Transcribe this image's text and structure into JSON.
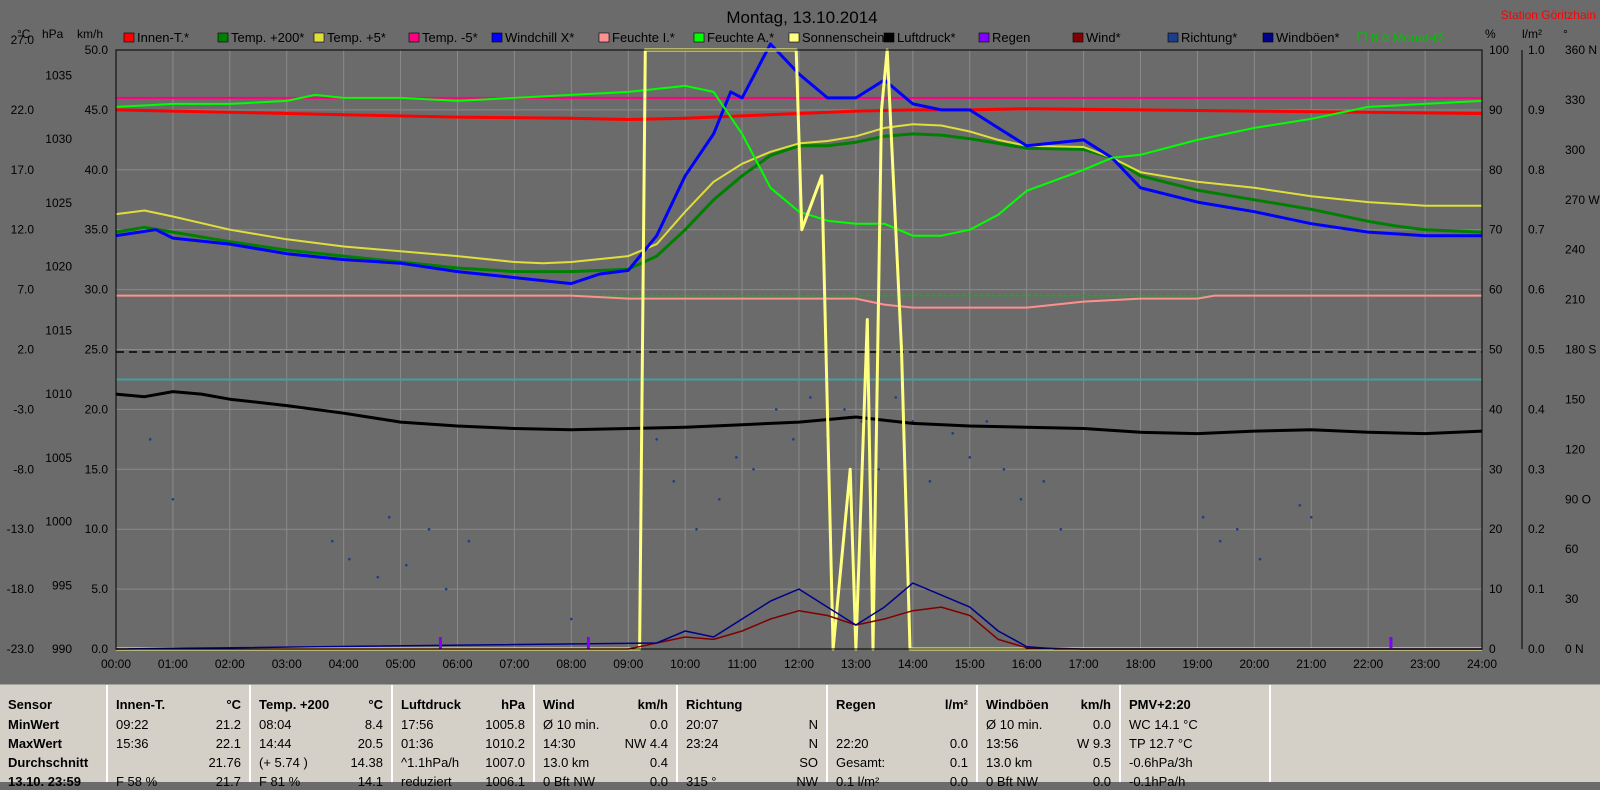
{
  "title": "Montag, 13.10.2014",
  "station": "Station Göritzhain",
  "axis_units_left": [
    "°C",
    "hPa",
    "km/h"
  ],
  "axis_units_right": [
    "%",
    "l/m²",
    "°"
  ],
  "colors": {
    "background": "#6b6b6b",
    "grid": "#8a8a8a",
    "innen_t": "#ff0000",
    "temp_200": "#008000",
    "temp_5": "#dede3c",
    "temp_m5": "#ff0080",
    "windchill": "#0000ff",
    "feuchte_i": "#ff9090",
    "feuchte_a": "#00ff00",
    "sonnenschein": "#ffff80",
    "luftdruck": "#000000",
    "regen": "#8000ff",
    "wind": "#800000",
    "richtung": "#1c3c8c",
    "windboeen": "#00008b",
    "monat": "#00c000",
    "station": "#ff0000",
    "dashed": "#000000",
    "teal": "#40a0a0"
  },
  "chart_data": {
    "type": "line",
    "title": "Montag, 13.10.2014",
    "x_ticks": [
      "00:00",
      "01:00",
      "02:00",
      "03:00",
      "04:00",
      "05:00",
      "06:00",
      "07:00",
      "08:00",
      "09:00",
      "10:00",
      "11:00",
      "12:00",
      "13:00",
      "14:00",
      "15:00",
      "16:00",
      "17:00",
      "18:00",
      "19:00",
      "20:00",
      "21:00",
      "22:00",
      "23:00",
      "24:00"
    ],
    "xlim": [
      0,
      24
    ],
    "y_axes": {
      "celsius": {
        "unit": "°C",
        "ticks": [
          "27.0",
          "22.0",
          "17.0",
          "12.0",
          "7.0",
          "2.0",
          "-3.0",
          "-8.0",
          "-13.0",
          "-18.0",
          "-23.0"
        ],
        "ylim": [
          -23,
          27
        ]
      },
      "hpa": {
        "unit": "hPa",
        "ticks": [
          "1035",
          "1030",
          "1025",
          "1020",
          "1015",
          "1010",
          "1005",
          "1000",
          "995",
          "990"
        ],
        "ylim": [
          990,
          1037
        ]
      },
      "kmh": {
        "unit": "km/h",
        "ticks": [
          "50.0",
          "45.0",
          "40.0",
          "35.0",
          "30.0",
          "25.0",
          "20.0",
          "15.0",
          "10.0",
          "5.0",
          "0.0"
        ],
        "ylim": [
          0,
          50
        ]
      },
      "percent": {
        "unit": "%",
        "ticks": [
          "100",
          "90",
          "80",
          "70",
          "60",
          "50",
          "40",
          "30",
          "20",
          "10",
          "0"
        ],
        "ylim": [
          0,
          100
        ]
      },
      "rain": {
        "unit": "l/m²",
        "ticks": [
          "1.0",
          "0.9",
          "0.8",
          "0.7",
          "0.6",
          "0.5",
          "0.4",
          "0.3",
          "0.2",
          "0.1",
          "0.0"
        ],
        "ylim": [
          0,
          1
        ]
      },
      "direction": {
        "unit": "°",
        "ticks": [
          "360 N",
          "330",
          "300",
          "270 W",
          "240",
          "210",
          "180 S",
          "150",
          "120",
          "90 O",
          "60",
          "30",
          "0 N"
        ],
        "ylim": [
          0,
          360
        ]
      }
    },
    "legend": [
      {
        "name": "Innen-T.*",
        "color": "#ff0000"
      },
      {
        "name": "Temp. +200*",
        "color": "#008000"
      },
      {
        "name": "Temp. +5*",
        "color": "#dede3c"
      },
      {
        "name": "Temp. -5*",
        "color": "#ff0080"
      },
      {
        "name": "Windchill X*",
        "color": "#0000ff"
      },
      {
        "name": "Feuchte I.*",
        "color": "#ff9090"
      },
      {
        "name": "Feuchte A.*",
        "color": "#00ff00"
      },
      {
        "name": "Sonnenschein",
        "color": "#ffff80"
      },
      {
        "name": "Luftdruck*",
        "color": "#000000"
      },
      {
        "name": "Regen",
        "color": "#8000ff"
      },
      {
        "name": "Wind*",
        "color": "#800000"
      },
      {
        "name": "Richtung*",
        "color": "#1c3c8c"
      },
      {
        "name": "Windböen*",
        "color": "#00008b"
      },
      {
        "name": "8.6 Monat-Ø",
        "color": "#00c000"
      }
    ],
    "series": [
      {
        "name": "Innen-T.*",
        "axis": "celsius",
        "x": [
          0,
          1,
          2,
          4,
          6,
          8,
          9,
          10,
          11,
          12,
          13,
          14,
          15,
          16,
          18,
          20,
          22,
          24
        ],
        "y": [
          22.0,
          21.9,
          21.8,
          21.6,
          21.4,
          21.3,
          21.2,
          21.3,
          21.5,
          21.7,
          21.9,
          22.0,
          22.0,
          22.1,
          22.0,
          21.9,
          21.8,
          21.7
        ]
      },
      {
        "name": "Temp. -5*",
        "axis": "celsius",
        "x": [
          0,
          24
        ],
        "y": [
          23.0,
          23.0
        ]
      },
      {
        "name": "Temp. +200*",
        "axis": "celsius",
        "x": [
          0,
          0.5,
          1,
          2,
          3,
          4,
          5,
          6,
          7,
          8,
          9,
          9.5,
          10,
          10.5,
          11,
          11.5,
          12,
          12.5,
          13,
          13.5,
          14,
          14.5,
          15,
          15.5,
          16,
          17,
          17.5,
          18,
          19,
          20,
          21,
          22,
          22.5,
          23,
          24
        ],
        "y": [
          11.8,
          12.2,
          11.8,
          11.0,
          10.3,
          9.8,
          9.3,
          8.8,
          8.5,
          8.5,
          8.7,
          9.8,
          12.0,
          14.5,
          16.5,
          18.2,
          19.0,
          19.0,
          19.3,
          19.8,
          20.0,
          19.9,
          19.6,
          19.2,
          18.8,
          18.7,
          18.0,
          16.5,
          15.3,
          14.5,
          13.7,
          12.7,
          12.3,
          12.0,
          11.8
        ]
      },
      {
        "name": "Temp. +5*",
        "axis": "celsius",
        "x": [
          0,
          0.5,
          1,
          2,
          3,
          4,
          5,
          6,
          7,
          7.5,
          8,
          9,
          9.5,
          10,
          10.5,
          11,
          11.5,
          12,
          12.5,
          13,
          13.5,
          14,
          14.5,
          15,
          15.5,
          16,
          17,
          17.5,
          18,
          19,
          20,
          21,
          22,
          23,
          24
        ],
        "y": [
          13.3,
          13.6,
          13.1,
          12.0,
          11.2,
          10.6,
          10.2,
          9.8,
          9.3,
          9.2,
          9.3,
          9.8,
          10.8,
          13.5,
          16.0,
          17.5,
          18.5,
          19.2,
          19.4,
          19.8,
          20.5,
          20.8,
          20.7,
          20.2,
          19.5,
          19.0,
          18.9,
          18.0,
          16.8,
          16.0,
          15.5,
          14.8,
          14.3,
          14.0,
          14.0
        ]
      },
      {
        "name": "Windchill X*",
        "axis": "celsius",
        "x": [
          0,
          0.7,
          1,
          2,
          3,
          4,
          5,
          6,
          7,
          8,
          8.5,
          9,
          9.5,
          10,
          10.5,
          10.8,
          11,
          11.5,
          12,
          12.5,
          13,
          13.5,
          14,
          14.5,
          15,
          15.5,
          16,
          17,
          17.5,
          18,
          19,
          20,
          21,
          22,
          23,
          24
        ],
        "y": [
          11.5,
          12.0,
          11.3,
          10.8,
          10.0,
          9.5,
          9.2,
          8.5,
          8.0,
          7.5,
          8.3,
          8.6,
          11.5,
          16.5,
          20.0,
          23.5,
          23.0,
          27.5,
          25.0,
          23.0,
          23.0,
          24.5,
          22.5,
          22.0,
          22.0,
          20.5,
          19.0,
          19.5,
          18.0,
          15.5,
          14.3,
          13.5,
          12.5,
          11.8,
          11.5,
          11.5
        ]
      },
      {
        "name": "Luftdruck*",
        "axis": "hpa",
        "x": [
          0,
          0.5,
          1,
          1.5,
          2,
          3,
          4,
          5,
          6,
          7,
          8,
          9,
          10,
          11,
          12,
          13,
          14,
          15,
          16,
          17,
          18,
          19,
          20,
          21,
          22,
          23,
          24
        ],
        "y": [
          1010.0,
          1009.8,
          1010.2,
          1010.0,
          1009.6,
          1009.1,
          1008.5,
          1007.8,
          1007.5,
          1007.3,
          1007.2,
          1007.3,
          1007.4,
          1007.6,
          1007.8,
          1008.2,
          1007.7,
          1007.5,
          1007.4,
          1007.3,
          1007.0,
          1006.9,
          1007.1,
          1007.2,
          1007.0,
          1006.9,
          1007.1
        ]
      },
      {
        "name": "Feuchte I.*",
        "axis": "percent",
        "x": [
          0,
          8,
          9,
          10,
          11,
          12,
          13,
          13.5,
          14,
          15,
          16,
          17,
          18,
          19,
          19.3,
          20,
          22,
          24
        ],
        "y": [
          59.0,
          59.0,
          58.5,
          58.5,
          58.5,
          58.5,
          58.5,
          57.5,
          57.0,
          57.0,
          57.0,
          58.0,
          58.5,
          58.5,
          59.0,
          59.0,
          59.0,
          59.0
        ]
      },
      {
        "name": "Feuchte A.*",
        "axis": "percent",
        "x": [
          0,
          1,
          2,
          3,
          3.5,
          4,
          5,
          6,
          7,
          8,
          9,
          9.5,
          10,
          10.5,
          11,
          11.5,
          12,
          12.5,
          13,
          13.5,
          14,
          14.5,
          15,
          15.5,
          16,
          17,
          17.5,
          18,
          19,
          20,
          21,
          22,
          23,
          24
        ],
        "y": [
          90.5,
          91.0,
          91.0,
          91.5,
          92.5,
          92.0,
          92.0,
          91.5,
          92.0,
          92.5,
          93.0,
          93.5,
          94.0,
          93.0,
          86.0,
          77.0,
          73.0,
          71.5,
          71.0,
          71.0,
          69.0,
          69.0,
          70.0,
          72.5,
          76.5,
          80.0,
          82.0,
          82.5,
          85.0,
          87.0,
          88.5,
          90.5,
          91.0,
          91.5
        ]
      },
      {
        "name": "Sonnenschein",
        "axis": "percent",
        "x": [
          0,
          9.2,
          9.3,
          11.95,
          12.05,
          12.4,
          12.6,
          12.9,
          13.0,
          13.2,
          13.3,
          13.45,
          13.55,
          13.8,
          13.95,
          14.2,
          24
        ],
        "y": [
          0,
          0,
          100,
          100,
          70,
          79,
          0,
          30,
          0,
          55,
          0,
          90,
          100,
          50,
          0,
          0,
          0
        ]
      },
      {
        "name": "Wind*",
        "axis": "kmh",
        "x": [
          0,
          9,
          9.5,
          10,
          10.5,
          11,
          11.5,
          12,
          12.5,
          13,
          13.5,
          14,
          14.5,
          15,
          15.5,
          16,
          17,
          24
        ],
        "y": [
          0,
          0,
          0.5,
          1.0,
          0.8,
          1.5,
          2.5,
          3.2,
          2.8,
          2.0,
          2.5,
          3.2,
          3.5,
          2.8,
          0.8,
          0.1,
          0,
          0
        ]
      },
      {
        "name": "Windböen*",
        "axis": "kmh",
        "x": [
          0,
          9.5,
          10,
          10.5,
          11,
          11.5,
          12,
          12.5,
          13,
          13.5,
          14,
          14.5,
          15,
          15.5,
          16,
          16.5,
          24
        ],
        "y": [
          0,
          0.5,
          1.5,
          1.0,
          2.5,
          4.0,
          5.0,
          3.5,
          2.0,
          3.5,
          5.5,
          4.5,
          3.5,
          1.5,
          0.2,
          0,
          0
        ]
      }
    ],
    "reference_lines": [
      {
        "label": "Temp. -5*",
        "axis": "celsius",
        "value": 23.0,
        "color": "#ff0080"
      },
      {
        "label": "dashed",
        "axis": "hpa",
        "value": 1013.3,
        "color": "#000000"
      },
      {
        "label": "8.6 Monat-Ø",
        "axis": "percent",
        "value": 59.0,
        "color": "#00c000"
      },
      {
        "label": "teal",
        "axis": "celsius",
        "value": -0.5,
        "color": "#40a0a0"
      }
    ],
    "richtung_points": [
      [
        0.6,
        35
      ],
      [
        1.0,
        25
      ],
      [
        3.8,
        18
      ],
      [
        4.1,
        15
      ],
      [
        4.6,
        12
      ],
      [
        4.8,
        22
      ],
      [
        5.1,
        14
      ],
      [
        5.5,
        20
      ],
      [
        5.8,
        10
      ],
      [
        6.2,
        18
      ],
      [
        8.0,
        5
      ],
      [
        9.5,
        35
      ],
      [
        9.8,
        28
      ],
      [
        10.2,
        20
      ],
      [
        10.6,
        25
      ],
      [
        10.9,
        32
      ],
      [
        11.2,
        30
      ],
      [
        11.6,
        40
      ],
      [
        11.9,
        35
      ],
      [
        12.2,
        42
      ],
      [
        12.5,
        35
      ],
      [
        12.8,
        40
      ],
      [
        13.1,
        38
      ],
      [
        13.4,
        30
      ],
      [
        13.7,
        42
      ],
      [
        14.0,
        38
      ],
      [
        14.3,
        28
      ],
      [
        14.7,
        36
      ],
      [
        15.0,
        32
      ],
      [
        15.3,
        38
      ],
      [
        15.6,
        30
      ],
      [
        15.9,
        25
      ],
      [
        16.3,
        28
      ],
      [
        16.6,
        20
      ],
      [
        19.1,
        22
      ],
      [
        19.4,
        18
      ],
      [
        19.7,
        20
      ],
      [
        20.1,
        15
      ],
      [
        20.8,
        24
      ],
      [
        21.0,
        22
      ]
    ],
    "regen_marks": [
      [
        5.7,
        0.02
      ],
      [
        8.3,
        0.02
      ],
      [
        22.4,
        0.02
      ]
    ]
  },
  "bottom_panel": {
    "sensor": {
      "header": "Sensor",
      "rows": [
        "MinWert",
        "MaxWert",
        "Durchschnitt",
        "13.10. 23:59"
      ]
    },
    "innen": {
      "header": "Innen-T.",
      "unit": "°C",
      "rows": [
        [
          "09:22",
          "21.2"
        ],
        [
          "15:36",
          "22.1"
        ],
        [
          "",
          "21.76"
        ],
        [
          "F 58 %",
          "21.7"
        ]
      ]
    },
    "temp200": {
      "header": "Temp. +200",
      "unit": "°C",
      "rows": [
        [
          "08:04",
          "8.4"
        ],
        [
          "14:44",
          "20.5"
        ],
        [
          "(+ 5.74 )",
          "14.38"
        ],
        [
          "F 81 %",
          "14.1"
        ]
      ]
    },
    "luftdruck": {
      "header": "Luftdruck",
      "unit": "hPa",
      "rows": [
        [
          "17:56",
          "1005.8"
        ],
        [
          "01:36",
          "1010.2"
        ],
        [
          "^1.1hPa/h",
          "1007.0"
        ],
        [
          "reduziert",
          "1006.1"
        ]
      ]
    },
    "wind": {
      "header": "Wind",
      "unit": "km/h",
      "rows": [
        [
          "Ø 10 min.",
          "0.0"
        ],
        [
          "14:30",
          "NW 4.4"
        ],
        [
          "13.0 km",
          "0.4"
        ],
        [
          "0 Bft NW",
          "0.0"
        ]
      ]
    },
    "richtung": {
      "header": "Richtung",
      "rows": [
        [
          "20:07",
          "N"
        ],
        [
          "23:24",
          "N"
        ],
        [
          "",
          "SO"
        ],
        [
          "315 °",
          "NW"
        ]
      ]
    },
    "regen": {
      "header": "Regen",
      "unit": "l/m²",
      "rows": [
        [
          "",
          ""
        ],
        [
          "22:20",
          "0.0"
        ],
        [
          "Gesamt:",
          "0.1"
        ],
        [
          "0.1 l/m²",
          "0.0"
        ]
      ]
    },
    "windboeen": {
      "header": "Windböen",
      "unit": "km/h",
      "rows": [
        [
          "Ø 10 min.",
          "0.0"
        ],
        [
          "13:56",
          "W 9.3"
        ],
        [
          "13.0 km",
          "0.5"
        ],
        [
          "0 Bft NW",
          "0.0"
        ]
      ]
    },
    "pmv": {
      "header": "PMV+2:20",
      "rows": [
        "WC 14.1 °C",
        "TP 12.7 °C",
        "-0.6hPa/3h",
        "-0.1hPa/h"
      ]
    }
  }
}
